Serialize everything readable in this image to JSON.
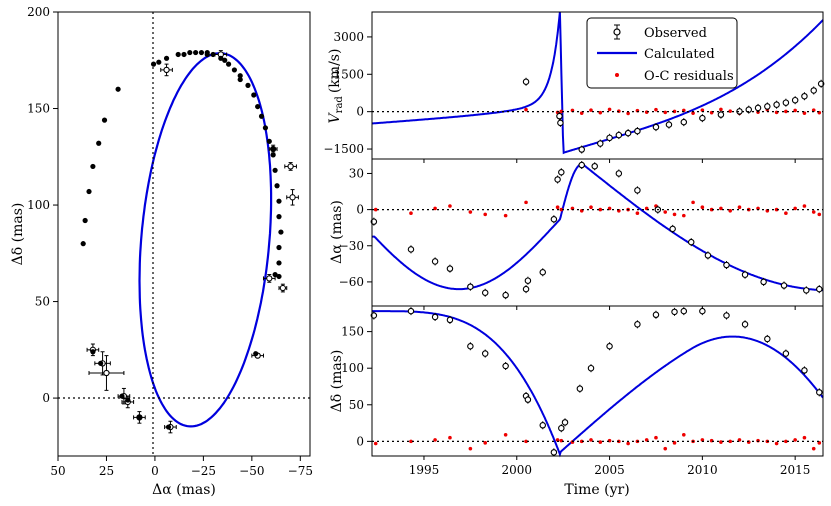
{
  "chart_data": [
    {
      "type": "scatter",
      "xlabel": "Δα (mas)",
      "ylabel": "Δδ (mas)",
      "xlim": [
        50,
        -80
      ],
      "ylim": [
        -30,
        200
      ],
      "xticks": [
        50,
        25,
        0,
        -25,
        -50,
        -75
      ],
      "yticks": [
        0,
        50,
        100,
        150,
        200
      ],
      "xtick_labels": [
        "50",
        "25",
        "0",
        "−25",
        "−50",
        "−75"
      ],
      "ytick_labels": [
        "0",
        "50",
        "100",
        "150",
        "200"
      ],
      "grid": false,
      "orbit": {
        "center": [
          -26,
          82
        ],
        "a_dec": 97,
        "a_ra": 33,
        "tilt_deg": 5
      },
      "observed": [
        [
          0.7,
          173
        ],
        [
          -2,
          174
        ],
        [
          -6,
          176
        ],
        [
          -12,
          178
        ],
        [
          -15,
          178
        ],
        [
          -18,
          179
        ],
        [
          -21,
          179
        ],
        [
          -24,
          179
        ],
        [
          -27,
          179
        ],
        [
          -30,
          178
        ],
        [
          -34,
          176
        ],
        [
          -38,
          173
        ],
        [
          -41,
          170
        ],
        [
          -44,
          167
        ],
        [
          -48,
          162
        ],
        [
          -51,
          157
        ],
        [
          -53,
          151
        ],
        [
          -55,
          146
        ],
        [
          -57,
          140
        ],
        [
          -59,
          133
        ],
        [
          -61,
          126
        ],
        [
          -62,
          118
        ],
        [
          -63,
          110
        ],
        [
          -64,
          102
        ],
        [
          -64,
          94
        ],
        [
          -65,
          86
        ],
        [
          -64,
          78
        ],
        [
          -64,
          70
        ],
        [
          -62,
          64
        ],
        [
          -52,
          23
        ],
        [
          -7,
          -15
        ],
        [
          8,
          -10
        ],
        [
          14,
          -1
        ],
        [
          17,
          1
        ],
        [
          28,
          18
        ],
        [
          32,
          24
        ],
        [
          37,
          80
        ],
        [
          36,
          92
        ],
        [
          34,
          107
        ],
        [
          32,
          120
        ],
        [
          29,
          132
        ],
        [
          26,
          144
        ],
        [
          19,
          160
        ],
        [
          -27,
          178
        ],
        [
          -36,
          175
        ],
        [
          -44,
          165
        ],
        [
          -61,
          129
        ],
        [
          -64,
          63
        ]
      ],
      "observed_errorbars": [
        [
          -6,
          170,
          3,
          3
        ],
        [
          -34,
          178,
          3,
          2
        ],
        [
          -61,
          129,
          2,
          2
        ],
        [
          -70,
          120,
          3,
          2
        ],
        [
          -71,
          104,
          3,
          4
        ],
        [
          -66,
          57,
          2,
          2
        ],
        [
          -59,
          62,
          3,
          2
        ],
        [
          -53,
          22,
          3,
          1
        ],
        [
          -8,
          -15,
          3,
          3
        ],
        [
          8,
          -10,
          3,
          3
        ],
        [
          16,
          1,
          3,
          4
        ],
        [
          14,
          -2,
          3,
          3
        ],
        [
          25,
          13,
          9,
          9
        ],
        [
          27,
          18,
          4,
          6
        ],
        [
          32,
          25,
          3,
          3
        ]
      ],
      "reference_lines": {
        "x": 0,
        "y": 0
      }
    },
    {
      "type": "line",
      "xlim": [
        1992.2,
        2016.5
      ],
      "ylim": [
        -1900,
        4000
      ],
      "ylabel": "V",
      "ylabel_sub": "rad",
      "ylabel_unit": "(km/s)",
      "yticks": [
        -1500,
        0,
        1500,
        3000
      ],
      "ytick_labels": [
        "−1500",
        "0",
        "1500",
        "3000"
      ],
      "series": [
        {
          "name": "Observed",
          "type": "scatter",
          "x": [
            2000.5,
            2002.3,
            2002.35,
            2003.5,
            2004.5,
            2005.0,
            2005.5,
            2006.0,
            2006.5,
            2007.5,
            2008.2,
            2009.0,
            2010.0,
            2011.0,
            2012.0,
            2012.5,
            2013.0,
            2013.5,
            2014.0,
            2014.5,
            2015.0,
            2015.5,
            2016.0,
            2016.4
          ],
          "y": [
            1200,
            -180,
            -450,
            -1520,
            -1280,
            -1050,
            -940,
            -860,
            -780,
            -620,
            -520,
            -420,
            -260,
            -120,
            10,
            80,
            150,
            210,
            280,
            360,
            460,
            620,
            850,
            1120
          ]
        },
        {
          "name": "Calculated",
          "type": "line",
          "color": "#0000dd"
        },
        {
          "name": "O-C residuals",
          "type": "scatter",
          "color": "#ee0000"
        }
      ],
      "reference_lines": {
        "y": 0
      }
    },
    {
      "type": "line",
      "xlim": [
        1992.2,
        2016.5
      ],
      "ylim": [
        -80,
        42
      ],
      "ylabel": "Δα (mas)",
      "yticks": [
        -60,
        -30,
        0,
        30
      ],
      "ytick_labels": [
        "−60",
        "−30",
        "0",
        "30"
      ],
      "series": [
        {
          "name": "Observed",
          "type": "scatter",
          "x": [
            1992.3,
            1994.3,
            1995.6,
            1996.4,
            1997.5,
            1998.3,
            1999.4,
            2000.5,
            2000.6,
            2001.4,
            2002.0,
            2002.2,
            2002.4,
            2003.5,
            2004.2,
            2005.5,
            2006.5,
            2007.6,
            2008.4,
            2009.4,
            2010.3,
            2011.3,
            2012.3,
            2013.3,
            2014.4,
            2015.6,
            2016.3
          ],
          "y": [
            -10,
            -33,
            -43,
            -49,
            -64,
            -69,
            -71,
            -66,
            -59,
            -52,
            -8,
            25,
            31,
            37,
            36,
            30,
            16,
            0,
            -16,
            -27,
            -38,
            -46,
            -54,
            -60,
            -63,
            -67,
            -66
          ]
        },
        {
          "name": "Calculated",
          "type": "line",
          "color": "#0000dd"
        },
        {
          "name": "O-C residuals",
          "type": "scatter",
          "color": "#ee0000"
        }
      ],
      "reference_lines": {
        "y": 0
      }
    },
    {
      "type": "line",
      "xlim": [
        1992.2,
        2016.5
      ],
      "ylim": [
        -20,
        185
      ],
      "xlabel": "Time (yr)",
      "ylabel": "Δδ (mas)",
      "xticks": [
        1995,
        2000,
        2005,
        2010,
        2015
      ],
      "xtick_labels": [
        "1995",
        "2000",
        "2005",
        "2010",
        "2015"
      ],
      "yticks": [
        0,
        50,
        100,
        150
      ],
      "ytick_labels": [
        "0",
        "50",
        "100",
        "150"
      ],
      "series": [
        {
          "name": "Observed",
          "type": "scatter",
          "x": [
            1992.3,
            1994.3,
            1995.6,
            1996.4,
            1997.5,
            1998.3,
            1999.4,
            2000.5,
            2000.6,
            2001.4,
            2002.0,
            2002.4,
            2002.6,
            2003.4,
            2004.0,
            2005.0,
            2006.5,
            2007.5,
            2008.5,
            2009.0,
            2010.0,
            2011.3,
            2012.3,
            2013.5,
            2014.5,
            2015.5,
            2016.3
          ],
          "y": [
            172,
            178,
            170,
            166,
            130,
            120,
            103,
            62,
            57,
            22,
            -15,
            18,
            26,
            72,
            100,
            130,
            160,
            173,
            177,
            178,
            178,
            172,
            160,
            140,
            120,
            97,
            67
          ]
        },
        {
          "name": "Calculated",
          "type": "line",
          "color": "#0000dd"
        },
        {
          "name": "O-C residuals",
          "type": "scatter",
          "color": "#ee0000"
        }
      ],
      "reference_lines": {
        "y": 0
      }
    }
  ],
  "legend": {
    "position": "top-center",
    "entries": [
      {
        "label": "Observed",
        "kind": "errorbar-circle"
      },
      {
        "label": "Calculated",
        "kind": "line",
        "color": "#0000dd"
      },
      {
        "label": "O-C residuals",
        "kind": "dot",
        "color": "#ee0000"
      }
    ]
  }
}
